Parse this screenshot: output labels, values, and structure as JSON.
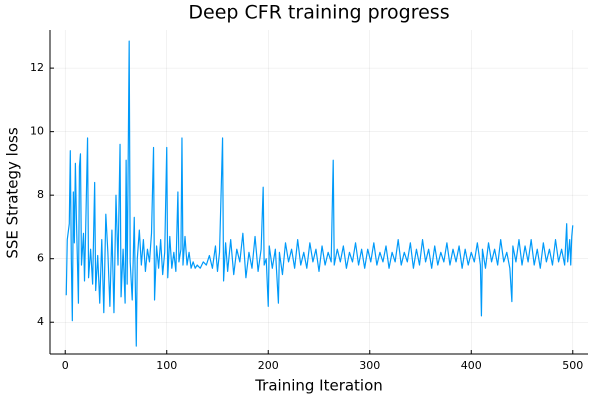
{
  "chart_data": {
    "type": "line",
    "title": "Deep CFR training progress",
    "x_label": "Training Iteration",
    "y_label": "SSE Strategy loss",
    "xlim": [
      -15,
      515
    ],
    "ylim": [
      3.0,
      13.2
    ],
    "xticks": [
      0,
      100,
      200,
      300,
      400,
      500
    ],
    "yticks": [
      4,
      6,
      8,
      10,
      12
    ],
    "grid": true,
    "series": [
      {
        "color": "#009af9",
        "x": [
          1,
          2,
          4,
          5,
          6,
          7,
          8,
          9,
          10,
          11,
          13,
          14,
          15,
          16,
          18,
          19,
          20,
          22,
          23,
          25,
          27,
          29,
          30,
          32,
          34,
          36,
          38,
          40,
          42,
          44,
          46,
          48,
          50,
          52,
          54,
          55,
          57,
          59,
          60,
          61,
          63,
          64,
          66,
          68,
          70,
          71,
          73,
          75,
          77,
          79,
          81,
          83,
          85,
          87,
          88,
          90,
          92,
          94,
          96,
          98,
          100,
          101,
          103,
          105,
          107,
          109,
          111,
          112,
          114,
          115,
          116,
          118,
          120,
          122,
          124,
          126,
          128,
          130,
          133,
          136,
          139,
          142,
          145,
          148,
          150,
          152,
          155,
          156,
          158,
          160,
          163,
          166,
          169,
          172,
          175,
          178,
          181,
          184,
          187,
          190,
          193,
          195,
          196,
          198,
          200,
          201,
          204,
          207,
          210,
          211,
          214,
          217,
          220,
          223,
          226,
          229,
          232,
          235,
          238,
          241,
          244,
          247,
          250,
          253,
          256,
          259,
          262,
          264,
          265,
          268,
          271,
          274,
          277,
          280,
          283,
          286,
          289,
          292,
          295,
          298,
          301,
          304,
          307,
          310,
          313,
          316,
          319,
          322,
          325,
          328,
          331,
          334,
          337,
          340,
          343,
          346,
          349,
          352,
          355,
          358,
          361,
          364,
          367,
          370,
          373,
          376,
          379,
          382,
          385,
          388,
          391,
          394,
          397,
          400,
          403,
          406,
          409,
          410,
          411,
          414,
          417,
          420,
          423,
          426,
          429,
          432,
          435,
          438,
          440,
          441,
          444,
          447,
          450,
          453,
          456,
          459,
          462,
          465,
          468,
          471,
          474,
          477,
          480,
          483,
          486,
          489,
          492,
          494,
          495,
          497,
          498,
          499,
          500
        ],
        "values": [
          4.85,
          6.6,
          7.1,
          9.4,
          6.0,
          4.05,
          8.1,
          6.5,
          9.0,
          7.3,
          4.6,
          8.9,
          9.3,
          5.8,
          6.8,
          5.3,
          6.7,
          9.8,
          5.4,
          6.3,
          5.2,
          8.4,
          5.0,
          6.1,
          4.6,
          6.6,
          4.3,
          7.4,
          6.2,
          4.5,
          6.9,
          4.3,
          8.0,
          5.8,
          9.6,
          4.8,
          6.3,
          4.6,
          9.1,
          5.2,
          12.85,
          5.9,
          4.7,
          7.3,
          3.25,
          6.0,
          6.9,
          5.8,
          6.6,
          5.6,
          6.3,
          5.9,
          6.8,
          9.5,
          4.7,
          6.4,
          5.7,
          6.6,
          5.5,
          6.2,
          9.5,
          5.4,
          6.7,
          5.7,
          6.2,
          5.6,
          8.1,
          5.9,
          6.3,
          9.8,
          5.8,
          6.7,
          5.8,
          6.2,
          5.7,
          5.9,
          5.7,
          5.8,
          5.7,
          5.9,
          5.8,
          6.1,
          5.7,
          6.4,
          5.6,
          6.2,
          9.8,
          5.3,
          6.5,
          5.6,
          6.6,
          5.5,
          6.3,
          5.9,
          6.8,
          5.4,
          6.2,
          5.7,
          6.7,
          5.6,
          6.3,
          8.25,
          5.8,
          6.0,
          4.5,
          6.4,
          5.7,
          6.3,
          4.6,
          6.2,
          5.5,
          6.5,
          5.9,
          6.3,
          5.7,
          6.6,
          5.8,
          6.2,
          5.7,
          6.5,
          5.9,
          6.3,
          5.6,
          6.4,
          5.8,
          6.2,
          5.9,
          9.1,
          5.8,
          6.3,
          5.9,
          6.4,
          5.7,
          6.2,
          5.9,
          6.5,
          5.8,
          6.3,
          5.7,
          6.3,
          5.9,
          6.5,
          5.8,
          6.2,
          5.9,
          6.4,
          5.7,
          6.2,
          5.9,
          6.6,
          5.8,
          6.2,
          5.9,
          6.5,
          5.7,
          6.3,
          5.8,
          6.6,
          5.9,
          6.3,
          5.7,
          6.4,
          5.8,
          6.2,
          5.9,
          6.5,
          5.8,
          6.3,
          5.9,
          6.4,
          5.7,
          6.3,
          5.8,
          6.2,
          5.9,
          6.5,
          5.8,
          4.2,
          6.3,
          5.7,
          6.5,
          5.9,
          6.3,
          5.8,
          6.6,
          5.9,
          6.2,
          5.7,
          4.65,
          6.4,
          5.9,
          6.6,
          5.8,
          6.4,
          5.9,
          6.6,
          5.8,
          6.3,
          5.7,
          6.5,
          5.9,
          6.3,
          5.8,
          6.6,
          5.9,
          6.3,
          5.8,
          7.1,
          5.9,
          6.6,
          5.8,
          6.7,
          7.05
        ]
      }
    ]
  }
}
